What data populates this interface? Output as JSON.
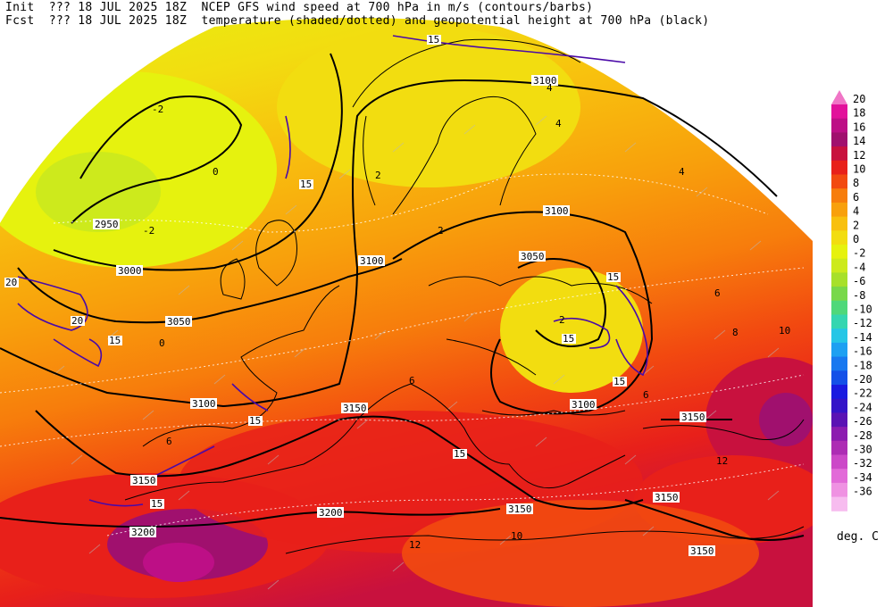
{
  "header": {
    "init_label": "Init",
    "init_value": "??? 18 JUL 2025 18Z",
    "fcst_label": "Fcst",
    "fcst_value": "??? 18 JUL 2025 18Z",
    "line1_title": "NCEP GFS wind speed at 700 hPa in m/s (contours/barbs)",
    "line2_title": "temperature (shaded/dotted) and geopotential height at 700 hPa (black)"
  },
  "colorbar": {
    "unit": "deg. C",
    "levels": [
      "20",
      "18",
      "16",
      "14",
      "12",
      "10",
      "8",
      "6",
      "4",
      "2",
      "0",
      "-2",
      "-4",
      "-6",
      "-8",
      "-10",
      "-12",
      "-14",
      "-16",
      "-18",
      "-20",
      "-22",
      "-24",
      "-26",
      "-28",
      "-30",
      "-32",
      "-34",
      "-36"
    ],
    "colors": [
      "#e2119b",
      "#bd0f86",
      "#a0106e",
      "#c8113e",
      "#e8201a",
      "#f24a10",
      "#f77d0c",
      "#f8a00c",
      "#f8c00e",
      "#f2dd10",
      "#e6f20e",
      "#cdea1c",
      "#a7e02a",
      "#78d84a",
      "#4fd87a",
      "#35d6b0",
      "#25c6e6",
      "#1da0f2",
      "#1878f0",
      "#1450e8",
      "#1a1ae0",
      "#3414c8",
      "#5a12b4",
      "#8c1cb0",
      "#ad2cb4",
      "#cc48c8",
      "#e26ad8",
      "#ef92e2",
      "#f7bcef"
    ],
    "top_triangle_color": "#f075c6"
  },
  "map": {
    "height_contour_labels": [
      "2950",
      "3000",
      "3050",
      "3100",
      "3100",
      "3100",
      "3100",
      "3100",
      "3050",
      "3150",
      "3150",
      "3150",
      "3150",
      "3150",
      "3200",
      "3200",
      "3150"
    ],
    "wind_contour_labels": [
      "15",
      "15",
      "15",
      "15",
      "15",
      "15",
      "15",
      "15",
      "20",
      "20",
      "15"
    ],
    "temperature_labels": [
      "-2",
      "-2",
      "0",
      "2",
      "2",
      "4",
      "4",
      "4",
      "6",
      "6",
      "6",
      "6",
      "8",
      "10",
      "10",
      "12",
      "12",
      "2",
      "0"
    ]
  }
}
